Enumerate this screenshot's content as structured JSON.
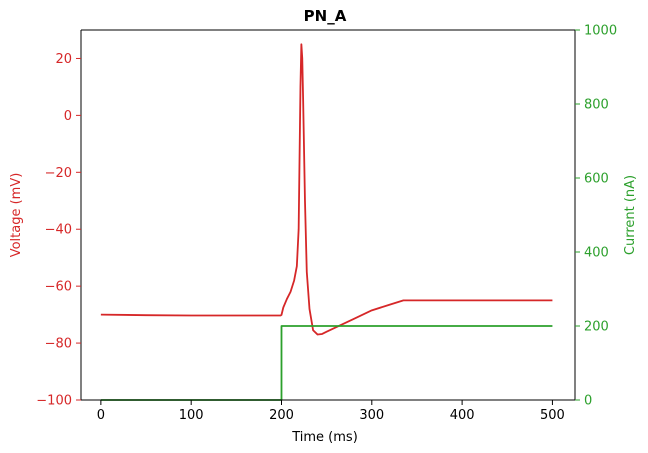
{
  "chart_data": {
    "type": "line",
    "title": "PN_A",
    "xlabel": "Time (ms)",
    "ylabel_left": "Voltage (mV)",
    "ylabel_right": "Current (nA)",
    "xlim": [
      -22,
      525
    ],
    "ylim_left": [
      -100,
      30
    ],
    "ylim_right": [
      0,
      1000
    ],
    "x_ticks": [
      0,
      100,
      200,
      300,
      400,
      500
    ],
    "y_left_ticks": [
      -100,
      -80,
      -60,
      -40,
      -20,
      0,
      20
    ],
    "y_right_ticks": [
      0,
      200,
      400,
      600,
      800,
      1000
    ],
    "grid": false,
    "colors": {
      "voltage": "#d62728",
      "current": "#2ca02c",
      "axis": "#000000"
    },
    "series": [
      {
        "axis": "left",
        "color": "#d62728",
        "x": [
          0,
          50,
          100,
          150,
          199,
          200,
          202,
          206,
          210,
          214,
          217,
          219,
          220,
          221,
          222,
          223,
          224,
          226,
          228,
          231,
          235,
          240,
          245,
          250,
          260,
          280,
          300,
          320,
          335,
          340,
          400,
          450,
          500
        ],
        "y": [
          -70,
          -70.2,
          -70.3,
          -70.3,
          -70.3,
          -70.1,
          -67.5,
          -64.5,
          -62,
          -58,
          -53,
          -40,
          -15,
          10,
          25,
          20,
          5,
          -30,
          -55,
          -68,
          -75.5,
          -77,
          -76.8,
          -76,
          -74.5,
          -71.5,
          -68.5,
          -66.5,
          -65,
          -65,
          -65,
          -65,
          -65
        ]
      },
      {
        "axis": "right",
        "color": "#2ca02c",
        "x": [
          0,
          200,
          200,
          500
        ],
        "y": [
          0,
          0,
          200,
          200
        ]
      }
    ]
  }
}
